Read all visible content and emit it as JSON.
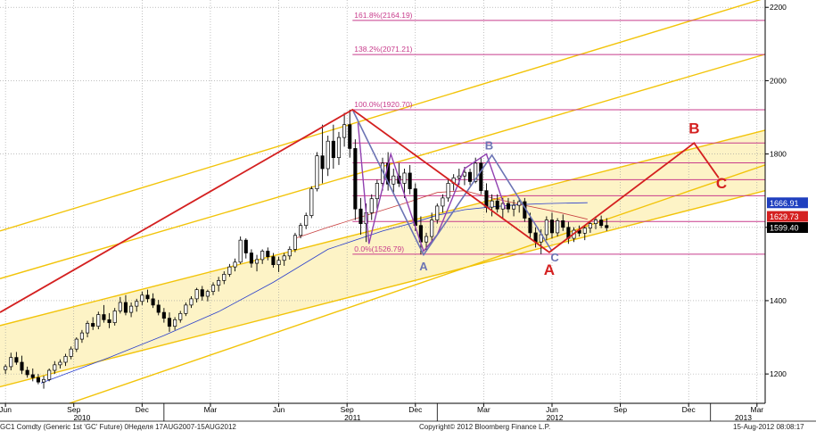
{
  "chart_data": {
    "type": "candlestick",
    "y_axis": {
      "side": "right",
      "scale": "linear",
      "ylim": [
        1120,
        2220
      ],
      "ticks": [
        "1200",
        "1400",
        "1600",
        "1800",
        "2000",
        "2200"
      ]
    },
    "x_axis": {
      "month_ticks": [
        {
          "label": "Jun",
          "x": 2010.42
        },
        {
          "label": "Sep",
          "x": 2010.67
        },
        {
          "label": "Dec",
          "x": 2010.92
        },
        {
          "label": "Mar",
          "x": 2011.17
        },
        {
          "label": "Jun",
          "x": 2011.42
        },
        {
          "label": "Sep",
          "x": 2011.67
        },
        {
          "label": "Dec",
          "x": 2011.92
        },
        {
          "label": "Mar",
          "x": 2012.17
        },
        {
          "label": "Jun",
          "x": 2012.42
        },
        {
          "label": "Sep",
          "x": 2012.67
        },
        {
          "label": "Dec",
          "x": 2012.92
        },
        {
          "label": "Mar",
          "x": 2013.17
        }
      ],
      "year_labels": [
        {
          "label": "2010",
          "x": 2010.7
        },
        {
          "label": "2011",
          "x": 2011.69
        },
        {
          "label": "2012",
          "x": 2012.43
        },
        {
          "label": "2013",
          "x": 2013.12
        }
      ],
      "year_boundaries": [
        2010.0,
        2011.0,
        2012.0,
        2013.0
      ],
      "xlim": [
        2010.4,
        2013.2
      ]
    },
    "grid": true,
    "price_labels": [
      {
        "text": "1666.91",
        "value": 1666.91,
        "color": "#1f3fbf"
      },
      {
        "text": "1629.73",
        "value": 1629.73,
        "color": "#d42020"
      },
      {
        "text": "1599.40",
        "value": 1599.4,
        "color": "#000000"
      }
    ],
    "fib_levels": [
      {
        "label": "161.8%(2164.19)",
        "value": 2164.19
      },
      {
        "label": "138.2%(2071.21)",
        "value": 2071.21
      },
      {
        "label": "100.0%(1920.70)",
        "value": 1920.7
      },
      {
        "label": "",
        "value": 1830
      },
      {
        "label": "",
        "value": 1776
      },
      {
        "label": "",
        "value": 1730
      },
      {
        "label": "",
        "value": 1686
      },
      {
        "label": "",
        "value": 1616
      },
      {
        "label": "0.0%(1526.79)",
        "value": 1526.79
      }
    ],
    "fib_x_start": 2011.69,
    "channel": {
      "comment_free_lines": true,
      "inner_top": [
        [
          2010.4,
          1332
        ],
        [
          2013.2,
          1865
        ]
      ],
      "inner_bottom": [
        [
          2010.4,
          1165
        ],
        [
          2013.2,
          1700
        ]
      ],
      "outer_top": [
        [
          2010.4,
          1590
        ],
        [
          2013.2,
          2225
        ]
      ],
      "mid_upper": [
        [
          2010.4,
          1460
        ],
        [
          2013.2,
          2072
        ]
      ],
      "lower": [
        [
          2010.4,
          1055
        ],
        [
          2013.2,
          1770
        ]
      ]
    },
    "red_wave": {
      "points": [
        [
          2010.4,
          1368
        ],
        [
          2011.69,
          1921
        ],
        [
          2012.41,
          1532
        ],
        [
          2012.94,
          1830
        ],
        [
          2013.03,
          1735
        ]
      ],
      "labels": [
        {
          "text": "A",
          "x": 2012.41,
          "y": 1470
        },
        {
          "text": "B",
          "x": 2012.94,
          "y": 1856
        },
        {
          "text": "C",
          "x": 2013.04,
          "y": 1706
        }
      ]
    },
    "blue_wave": {
      "points": [
        [
          2011.69,
          1921
        ],
        [
          2011.95,
          1525
        ],
        [
          2012.2,
          1797
        ],
        [
          2012.42,
          1535
        ]
      ],
      "labels": [
        {
          "text": "A",
          "x": 2011.95,
          "y": 1483
        },
        {
          "text": "B",
          "x": 2012.19,
          "y": 1812
        },
        {
          "text": "C",
          "x": 2012.43,
          "y": 1507
        }
      ]
    },
    "purple_pattern": {
      "points": [
        [
          2011.71,
          1885
        ],
        [
          2011.75,
          1555
        ],
        [
          2011.83,
          1800
        ],
        [
          2011.95,
          1535
        ],
        [
          2012.0,
          1580
        ],
        [
          2012.1,
          1760
        ],
        [
          2012.18,
          1800
        ],
        [
          2012.25,
          1650
        ]
      ]
    },
    "ma_red": [
      [
        2011.48,
        1570
      ],
      [
        2011.6,
        1600
      ],
      [
        2011.75,
        1635
      ],
      [
        2011.9,
        1670
      ],
      [
        2012.0,
        1695
      ],
      [
        2012.1,
        1700
      ],
      [
        2012.2,
        1680
      ],
      [
        2012.32,
        1660
      ],
      [
        2012.45,
        1640
      ],
      [
        2012.55,
        1622
      ]
    ],
    "ma_blue": [
      [
        2010.55,
        1175
      ],
      [
        2010.8,
        1245
      ],
      [
        2011.0,
        1305
      ],
      [
        2011.2,
        1370
      ],
      [
        2011.4,
        1450
      ],
      [
        2011.6,
        1540
      ],
      [
        2011.8,
        1590
      ],
      [
        2011.9,
        1610
      ],
      [
        2012.0,
        1633
      ],
      [
        2012.1,
        1648
      ],
      [
        2012.2,
        1656
      ],
      [
        2012.3,
        1662
      ],
      [
        2012.4,
        1665
      ],
      [
        2012.55,
        1667
      ]
    ],
    "candles": [
      {
        "t": 2010.42,
        "o": 1212,
        "h": 1226,
        "l": 1200,
        "c": 1220
      },
      {
        "t": 2010.44,
        "o": 1220,
        "h": 1258,
        "l": 1210,
        "c": 1245
      },
      {
        "t": 2010.46,
        "o": 1245,
        "h": 1260,
        "l": 1225,
        "c": 1232
      },
      {
        "t": 2010.48,
        "o": 1232,
        "h": 1250,
        "l": 1200,
        "c": 1210
      },
      {
        "t": 2010.5,
        "o": 1210,
        "h": 1220,
        "l": 1190,
        "c": 1198
      },
      {
        "t": 2010.52,
        "o": 1198,
        "h": 1215,
        "l": 1180,
        "c": 1190
      },
      {
        "t": 2010.54,
        "o": 1190,
        "h": 1200,
        "l": 1172,
        "c": 1178
      },
      {
        "t": 2010.56,
        "o": 1178,
        "h": 1195,
        "l": 1160,
        "c": 1185
      },
      {
        "t": 2010.58,
        "o": 1185,
        "h": 1215,
        "l": 1180,
        "c": 1210
      },
      {
        "t": 2010.6,
        "o": 1210,
        "h": 1235,
        "l": 1200,
        "c": 1225
      },
      {
        "t": 2010.62,
        "o": 1225,
        "h": 1240,
        "l": 1215,
        "c": 1232
      },
      {
        "t": 2010.64,
        "o": 1232,
        "h": 1255,
        "l": 1222,
        "c": 1248
      },
      {
        "t": 2010.66,
        "o": 1248,
        "h": 1275,
        "l": 1240,
        "c": 1268
      },
      {
        "t": 2010.68,
        "o": 1268,
        "h": 1300,
        "l": 1260,
        "c": 1295
      },
      {
        "t": 2010.7,
        "o": 1295,
        "h": 1320,
        "l": 1285,
        "c": 1312
      },
      {
        "t": 2010.72,
        "o": 1312,
        "h": 1345,
        "l": 1300,
        "c": 1338
      },
      {
        "t": 2010.74,
        "o": 1338,
        "h": 1355,
        "l": 1320,
        "c": 1330
      },
      {
        "t": 2010.76,
        "o": 1330,
        "h": 1370,
        "l": 1322,
        "c": 1362
      },
      {
        "t": 2010.78,
        "o": 1362,
        "h": 1388,
        "l": 1340,
        "c": 1348
      },
      {
        "t": 2010.8,
        "o": 1348,
        "h": 1366,
        "l": 1325,
        "c": 1340
      },
      {
        "t": 2010.82,
        "o": 1340,
        "h": 1380,
        "l": 1332,
        "c": 1372
      },
      {
        "t": 2010.84,
        "o": 1372,
        "h": 1410,
        "l": 1365,
        "c": 1395
      },
      {
        "t": 2010.86,
        "o": 1395,
        "h": 1415,
        "l": 1360,
        "c": 1368
      },
      {
        "t": 2010.88,
        "o": 1368,
        "h": 1395,
        "l": 1355,
        "c": 1385
      },
      {
        "t": 2010.9,
        "o": 1385,
        "h": 1405,
        "l": 1370,
        "c": 1398
      },
      {
        "t": 2010.92,
        "o": 1398,
        "h": 1425,
        "l": 1388,
        "c": 1415
      },
      {
        "t": 2010.94,
        "o": 1415,
        "h": 1430,
        "l": 1395,
        "c": 1405
      },
      {
        "t": 2010.96,
        "o": 1405,
        "h": 1420,
        "l": 1380,
        "c": 1388
      },
      {
        "t": 2010.98,
        "o": 1388,
        "h": 1402,
        "l": 1360,
        "c": 1368
      },
      {
        "t": 2011.0,
        "o": 1368,
        "h": 1380,
        "l": 1340,
        "c": 1352
      },
      {
        "t": 2011.02,
        "o": 1352,
        "h": 1368,
        "l": 1315,
        "c": 1330
      },
      {
        "t": 2011.04,
        "o": 1330,
        "h": 1355,
        "l": 1320,
        "c": 1348
      },
      {
        "t": 2011.06,
        "o": 1348,
        "h": 1372,
        "l": 1340,
        "c": 1365
      },
      {
        "t": 2011.08,
        "o": 1365,
        "h": 1395,
        "l": 1358,
        "c": 1388
      },
      {
        "t": 2011.1,
        "o": 1388,
        "h": 1412,
        "l": 1380,
        "c": 1405
      },
      {
        "t": 2011.12,
        "o": 1405,
        "h": 1435,
        "l": 1395,
        "c": 1430
      },
      {
        "t": 2011.14,
        "o": 1430,
        "h": 1440,
        "l": 1400,
        "c": 1412
      },
      {
        "t": 2011.16,
        "o": 1412,
        "h": 1430,
        "l": 1398,
        "c": 1425
      },
      {
        "t": 2011.18,
        "o": 1425,
        "h": 1450,
        "l": 1415,
        "c": 1442
      },
      {
        "t": 2011.2,
        "o": 1442,
        "h": 1465,
        "l": 1425,
        "c": 1455
      },
      {
        "t": 2011.22,
        "o": 1455,
        "h": 1480,
        "l": 1445,
        "c": 1472
      },
      {
        "t": 2011.24,
        "o": 1472,
        "h": 1500,
        "l": 1465,
        "c": 1492
      },
      {
        "t": 2011.26,
        "o": 1492,
        "h": 1515,
        "l": 1480,
        "c": 1505
      },
      {
        "t": 2011.28,
        "o": 1505,
        "h": 1575,
        "l": 1500,
        "c": 1565
      },
      {
        "t": 2011.3,
        "o": 1565,
        "h": 1570,
        "l": 1515,
        "c": 1530
      },
      {
        "t": 2011.32,
        "o": 1530,
        "h": 1540,
        "l": 1490,
        "c": 1502
      },
      {
        "t": 2011.34,
        "o": 1502,
        "h": 1525,
        "l": 1480,
        "c": 1512
      },
      {
        "t": 2011.36,
        "o": 1512,
        "h": 1540,
        "l": 1500,
        "c": 1535
      },
      {
        "t": 2011.38,
        "o": 1535,
        "h": 1545,
        "l": 1510,
        "c": 1520
      },
      {
        "t": 2011.4,
        "o": 1520,
        "h": 1530,
        "l": 1490,
        "c": 1498
      },
      {
        "t": 2011.42,
        "o": 1498,
        "h": 1520,
        "l": 1478,
        "c": 1510
      },
      {
        "t": 2011.44,
        "o": 1510,
        "h": 1530,
        "l": 1495,
        "c": 1522
      },
      {
        "t": 2011.46,
        "o": 1522,
        "h": 1548,
        "l": 1512,
        "c": 1540
      },
      {
        "t": 2011.48,
        "o": 1540,
        "h": 1585,
        "l": 1532,
        "c": 1578
      },
      {
        "t": 2011.5,
        "o": 1578,
        "h": 1612,
        "l": 1570,
        "c": 1605
      },
      {
        "t": 2011.52,
        "o": 1605,
        "h": 1640,
        "l": 1595,
        "c": 1632
      },
      {
        "t": 2011.54,
        "o": 1632,
        "h": 1712,
        "l": 1625,
        "c": 1705
      },
      {
        "t": 2011.56,
        "o": 1705,
        "h": 1805,
        "l": 1698,
        "c": 1795
      },
      {
        "t": 2011.58,
        "o": 1795,
        "h": 1880,
        "l": 1720,
        "c": 1760
      },
      {
        "t": 2011.6,
        "o": 1760,
        "h": 1850,
        "l": 1740,
        "c": 1835
      },
      {
        "t": 2011.62,
        "o": 1835,
        "h": 1880,
        "l": 1760,
        "c": 1790
      },
      {
        "t": 2011.64,
        "o": 1790,
        "h": 1860,
        "l": 1770,
        "c": 1845
      },
      {
        "t": 2011.66,
        "o": 1845,
        "h": 1912,
        "l": 1820,
        "c": 1880
      },
      {
        "t": 2011.68,
        "o": 1880,
        "h": 1921,
        "l": 1790,
        "c": 1815
      },
      {
        "t": 2011.7,
        "o": 1815,
        "h": 1840,
        "l": 1620,
        "c": 1650
      },
      {
        "t": 2011.72,
        "o": 1650,
        "h": 1680,
        "l": 1580,
        "c": 1610
      },
      {
        "t": 2011.74,
        "o": 1610,
        "h": 1665,
        "l": 1560,
        "c": 1640
      },
      {
        "t": 2011.76,
        "o": 1640,
        "h": 1690,
        "l": 1620,
        "c": 1678
      },
      {
        "t": 2011.78,
        "o": 1678,
        "h": 1730,
        "l": 1650,
        "c": 1720
      },
      {
        "t": 2011.8,
        "o": 1720,
        "h": 1790,
        "l": 1700,
        "c": 1775
      },
      {
        "t": 2011.82,
        "o": 1775,
        "h": 1805,
        "l": 1700,
        "c": 1718
      },
      {
        "t": 2011.84,
        "o": 1718,
        "h": 1760,
        "l": 1690,
        "c": 1740
      },
      {
        "t": 2011.86,
        "o": 1740,
        "h": 1775,
        "l": 1710,
        "c": 1720
      },
      {
        "t": 2011.88,
        "o": 1720,
        "h": 1760,
        "l": 1680,
        "c": 1748
      },
      {
        "t": 2011.9,
        "o": 1748,
        "h": 1770,
        "l": 1690,
        "c": 1705
      },
      {
        "t": 2011.92,
        "o": 1705,
        "h": 1720,
        "l": 1590,
        "c": 1605
      },
      {
        "t": 2011.94,
        "o": 1605,
        "h": 1630,
        "l": 1526,
        "c": 1560
      },
      {
        "t": 2011.96,
        "o": 1560,
        "h": 1585,
        "l": 1535,
        "c": 1575
      },
      {
        "t": 2011.98,
        "o": 1575,
        "h": 1640,
        "l": 1560,
        "c": 1620
      },
      {
        "t": 2012.0,
        "o": 1620,
        "h": 1665,
        "l": 1610,
        "c": 1658
      },
      {
        "t": 2012.02,
        "o": 1658,
        "h": 1690,
        "l": 1640,
        "c": 1680
      },
      {
        "t": 2012.04,
        "o": 1680,
        "h": 1730,
        "l": 1670,
        "c": 1720
      },
      {
        "t": 2012.06,
        "o": 1720,
        "h": 1745,
        "l": 1700,
        "c": 1735
      },
      {
        "t": 2012.08,
        "o": 1735,
        "h": 1760,
        "l": 1715,
        "c": 1740
      },
      {
        "t": 2012.1,
        "o": 1740,
        "h": 1765,
        "l": 1715,
        "c": 1750
      },
      {
        "t": 2012.12,
        "o": 1750,
        "h": 1760,
        "l": 1715,
        "c": 1725
      },
      {
        "t": 2012.14,
        "o": 1725,
        "h": 1790,
        "l": 1720,
        "c": 1775
      },
      {
        "t": 2012.16,
        "o": 1775,
        "h": 1792,
        "l": 1690,
        "c": 1700
      },
      {
        "t": 2012.18,
        "o": 1700,
        "h": 1720,
        "l": 1640,
        "c": 1655
      },
      {
        "t": 2012.2,
        "o": 1655,
        "h": 1690,
        "l": 1630,
        "c": 1672
      },
      {
        "t": 2012.22,
        "o": 1672,
        "h": 1690,
        "l": 1640,
        "c": 1650
      },
      {
        "t": 2012.24,
        "o": 1650,
        "h": 1680,
        "l": 1625,
        "c": 1665
      },
      {
        "t": 2012.26,
        "o": 1665,
        "h": 1680,
        "l": 1640,
        "c": 1650
      },
      {
        "t": 2012.28,
        "o": 1650,
        "h": 1675,
        "l": 1630,
        "c": 1660
      },
      {
        "t": 2012.3,
        "o": 1660,
        "h": 1680,
        "l": 1640,
        "c": 1670
      },
      {
        "t": 2012.32,
        "o": 1670,
        "h": 1680,
        "l": 1615,
        "c": 1625
      },
      {
        "t": 2012.34,
        "o": 1625,
        "h": 1640,
        "l": 1570,
        "c": 1585
      },
      {
        "t": 2012.36,
        "o": 1585,
        "h": 1600,
        "l": 1545,
        "c": 1560
      },
      {
        "t": 2012.38,
        "o": 1560,
        "h": 1595,
        "l": 1527,
        "c": 1580
      },
      {
        "t": 2012.4,
        "o": 1580,
        "h": 1630,
        "l": 1565,
        "c": 1620
      },
      {
        "t": 2012.42,
        "o": 1620,
        "h": 1640,
        "l": 1570,
        "c": 1585
      },
      {
        "t": 2012.44,
        "o": 1585,
        "h": 1625,
        "l": 1575,
        "c": 1618
      },
      {
        "t": 2012.46,
        "o": 1618,
        "h": 1635,
        "l": 1590,
        "c": 1600
      },
      {
        "t": 2012.48,
        "o": 1600,
        "h": 1615,
        "l": 1555,
        "c": 1570
      },
      {
        "t": 2012.5,
        "o": 1570,
        "h": 1600,
        "l": 1560,
        "c": 1592
      },
      {
        "t": 2012.52,
        "o": 1592,
        "h": 1605,
        "l": 1575,
        "c": 1584
      },
      {
        "t": 2012.54,
        "o": 1584,
        "h": 1605,
        "l": 1565,
        "c": 1598
      },
      {
        "t": 2012.56,
        "o": 1598,
        "h": 1615,
        "l": 1585,
        "c": 1610
      },
      {
        "t": 2012.58,
        "o": 1610,
        "h": 1630,
        "l": 1595,
        "c": 1620
      },
      {
        "t": 2012.6,
        "o": 1620,
        "h": 1632,
        "l": 1598,
        "c": 1605
      },
      {
        "t": 2012.62,
        "o": 1605,
        "h": 1625,
        "l": 1590,
        "c": 1599
      }
    ]
  },
  "footer": {
    "left": "GC1 Comdty (Generic 1st 'GC' Future) 0Неделя 17AUG2007-15AUG2012",
    "center": "Copyright© 2012 Bloomberg Finance L.P.",
    "right": "15-Aug-2012 08:08:17"
  },
  "colors": {
    "channel_fill": "#fdf3c6",
    "channel_line": "#f2c40a",
    "fib": "#c83c8c",
    "red": "#d42020",
    "blue_wave": "#6c74b4",
    "purple": "#9040b0",
    "ma_blue": "#2a3fcc",
    "grid": "#9a9a9a",
    "candle": "#000000"
  }
}
